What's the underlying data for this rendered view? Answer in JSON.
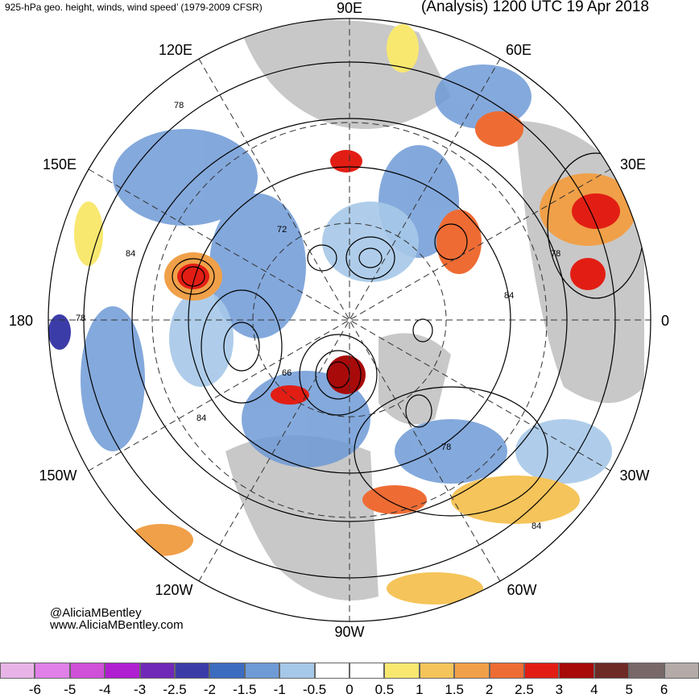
{
  "header": {
    "product": "925-hPa geo. height, winds, wind speed’ (1979-2009 CFSR)",
    "valid": "(Analysis) 1200 UTC 19 Apr 2018"
  },
  "credits": {
    "handle": "@AliciaMBentley",
    "site": "www.AliciaMBentley.com"
  },
  "longitude_labels": [
    "90E",
    "60E",
    "30E",
    "0",
    "30W",
    "60W",
    "90W",
    "120W",
    "150W",
    "180",
    "150E",
    "120E"
  ],
  "contour_labels": [
    "72",
    "78",
    "84",
    "66"
  ],
  "colorbar": {
    "colors": [
      "#e8b4e8",
      "#e080e8",
      "#d050d8",
      "#b020d0",
      "#7028b8",
      "#3c3ca8",
      "#3c6cc0",
      "#6e9ad6",
      "#a6c8e8",
      "#ffffff",
      "#ffffff",
      "#f8e870",
      "#f5c45a",
      "#f0a048",
      "#ee6c34",
      "#e21e14",
      "#a80a0a",
      "#6e2a24",
      "#786868",
      "#b4aaa8"
    ],
    "ticks": [
      "-6",
      "-5",
      "-4",
      "-3",
      "-2.5",
      "-2",
      "-1.5",
      "-1",
      "-0.5",
      "0",
      "0.5",
      "1",
      "1.5",
      "2",
      "2.5",
      "3",
      "4",
      "5",
      "6"
    ]
  },
  "colors": {
    "land": "#c8c8c8",
    "positive_anomaly": "#e89030",
    "negative_anomaly": "#6e9ad6",
    "contour": "#000000"
  }
}
